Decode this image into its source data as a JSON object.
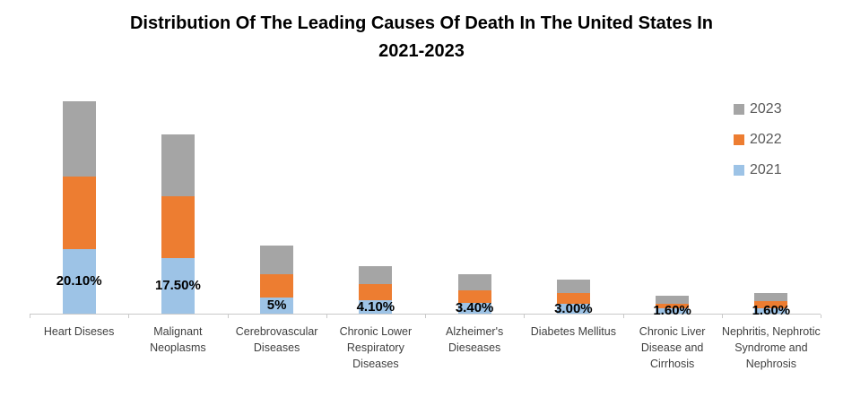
{
  "title": {
    "full": "Distribution Of The Leading Causes Of Death In The United States In 2021-2023",
    "lines": [
      "Distribution Of The Leading Causes Of Death In The United States In",
      "2021-2023"
    ]
  },
  "chart_data": {
    "type": "bar",
    "stacked": true,
    "title": "Distribution Of The Leading Causes Of Death In The United States In 2021-2023",
    "categories": [
      "Heart Diseses",
      "Malignant Neoplasms",
      "Cerebrovascular Diseases",
      "Chronic Lower Respiratory Diseases",
      "Alzheimer's Dieseases",
      "Diabetes Mellitus",
      "Chronic Liver Disease and Cirrhosis",
      "Nephritis, Nephrotic Syndrome and Nephrosis"
    ],
    "series": [
      {
        "name": "2021",
        "color": "#9DC3E6",
        "values": [
          20.1,
          17.5,
          5,
          4.1,
          3.4,
          3.0,
          1.6,
          1.6
        ],
        "data_labels": [
          "20.10%",
          "17.50%",
          "5%",
          "4.10%",
          "3.40%",
          "3.00%",
          "1.60%",
          "1.60%"
        ],
        "labels_shown": true
      },
      {
        "name": "2022",
        "color": "#ED7D31",
        "values": [
          22.8,
          19.4,
          7.3,
          5.3,
          3.9,
          3.4,
          1.4,
          2.3
        ],
        "labels_shown": false,
        "values_estimated_from_pixels": true
      },
      {
        "name": "2023",
        "color": "#A5A5A5",
        "values": [
          23.6,
          19.4,
          9.0,
          5.6,
          5.1,
          4.4,
          2.5,
          2.6
        ],
        "labels_shown": false,
        "values_estimated_from_pixels": true
      }
    ],
    "legend": {
      "position": "right",
      "order": [
        "2023",
        "2022",
        "2021"
      ]
    },
    "axes": {
      "y_axis_visible": false,
      "x_axis_line": true,
      "gridlines": false,
      "unit": "percent"
    }
  },
  "colors": {
    "axis_line": "#C9C9C9",
    "legend_text": "#595959",
    "category_text": "#3F3F3F",
    "data_label_text": "#000000",
    "background": "#FFFFFF"
  }
}
